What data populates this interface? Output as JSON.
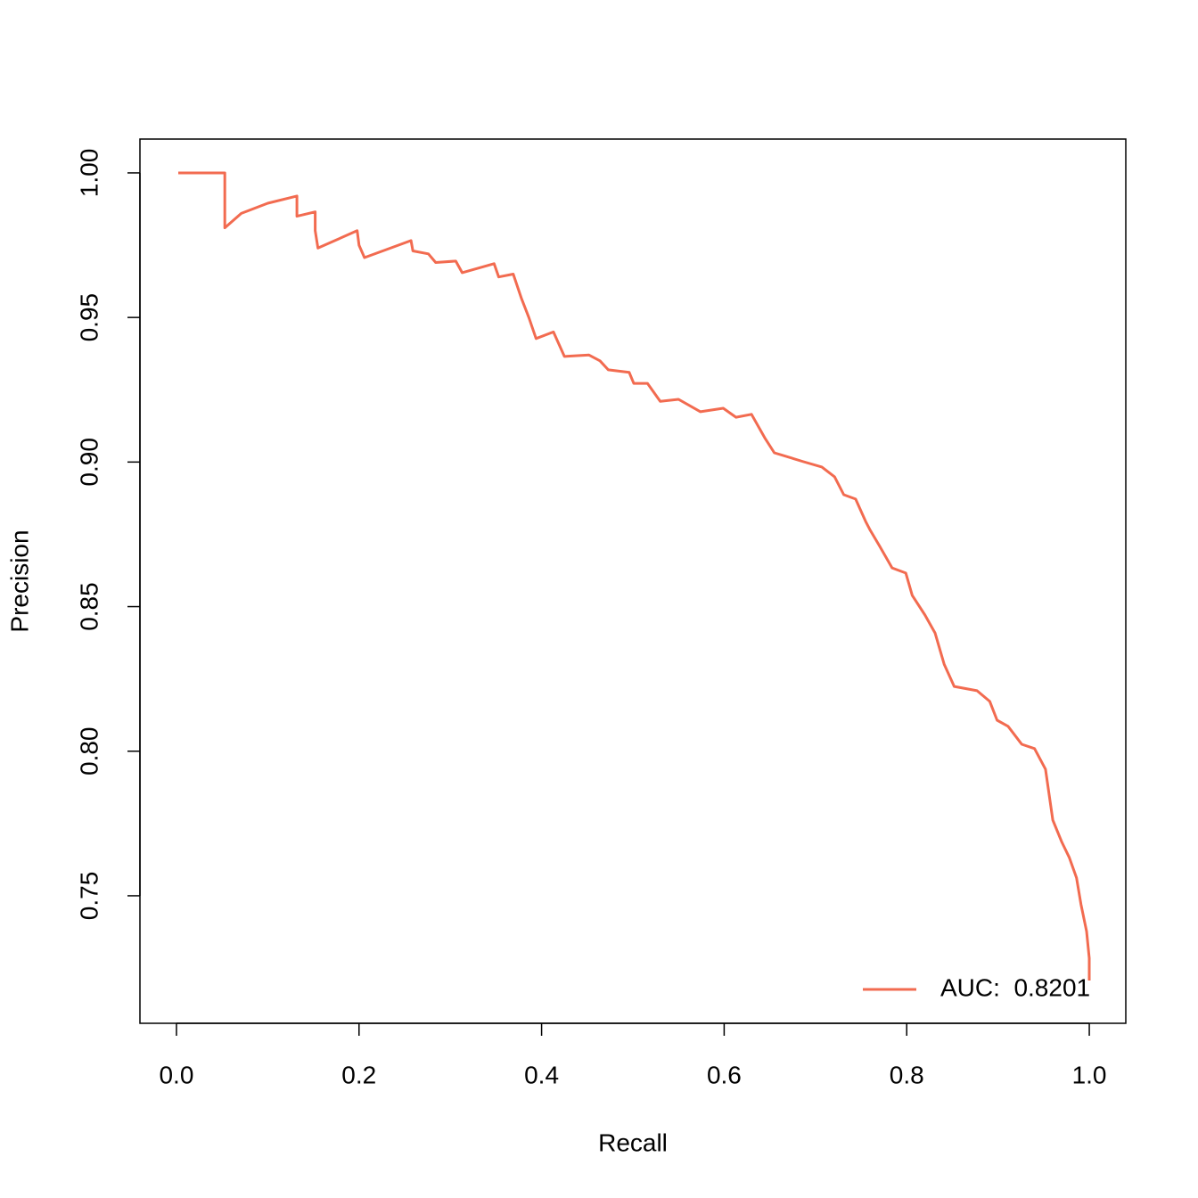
{
  "chart_data": {
    "type": "line",
    "xlabel": "Recall",
    "ylabel": "Precision",
    "xlim": [
      -0.04,
      1.04
    ],
    "ylim": [
      0.7059,
      1.0117
    ],
    "xticks": [
      {
        "value": 0,
        "label": "0.0"
      },
      0.2,
      0.4,
      0.6,
      0.8,
      {
        "value": 1,
        "label": "1.0"
      }
    ],
    "yticks": [
      {
        "value": 0.75,
        "label": "0.75"
      },
      {
        "value": 0.8,
        "label": "0.80"
      },
      {
        "value": 0.85,
        "label": "0.85"
      },
      {
        "value": 0.9,
        "label": "0.90"
      },
      {
        "value": 0.95,
        "label": "0.95"
      },
      {
        "value": 1,
        "label": "1.00"
      }
    ],
    "legend": "bottomright",
    "series": [
      {
        "name": "AUC:  0.8201",
        "color": "#f26b50",
        "x": [
          0.002,
          0.053,
          0.053,
          0.071,
          0.1,
          0.132,
          0.132,
          0.152,
          0.152,
          0.155,
          0.198,
          0.2,
          0.206,
          0.257,
          0.259,
          0.276,
          0.284,
          0.306,
          0.313,
          0.348,
          0.353,
          0.369,
          0.378,
          0.386,
          0.394,
          0.413,
          0.425,
          0.452,
          0.464,
          0.473,
          0.496,
          0.501,
          0.516,
          0.53,
          0.55,
          0.574,
          0.599,
          0.613,
          0.63,
          0.645,
          0.655,
          0.687,
          0.707,
          0.721,
          0.731,
          0.744,
          0.755,
          0.76,
          0.77,
          0.784,
          0.799,
          0.806,
          0.82,
          0.831,
          0.841,
          0.852,
          0.877,
          0.891,
          0.899,
          0.911,
          0.926,
          0.94,
          0.952,
          0.96,
          0.97,
          0.978,
          0.986,
          0.991,
          0.997,
          1.0,
          1.0
        ],
        "values": [
          1.0,
          1.0,
          0.981,
          0.986,
          0.9895,
          0.992,
          0.985,
          0.9865,
          0.98,
          0.974,
          0.98,
          0.975,
          0.9707,
          0.9766,
          0.973,
          0.972,
          0.969,
          0.9695,
          0.9655,
          0.9686,
          0.964,
          0.965,
          0.9565,
          0.95,
          0.9427,
          0.945,
          0.9365,
          0.937,
          0.935,
          0.9319,
          0.931,
          0.9272,
          0.9272,
          0.921,
          0.9217,
          0.9174,
          0.9186,
          0.9155,
          0.9165,
          0.9081,
          0.9032,
          0.9001,
          0.8983,
          0.8949,
          0.8887,
          0.8872,
          0.8795,
          0.8764,
          0.8711,
          0.8634,
          0.8616,
          0.8539,
          0.8471,
          0.8409,
          0.8301,
          0.8224,
          0.8209,
          0.8172,
          0.8107,
          0.8086,
          0.8024,
          0.8009,
          0.7938,
          0.7762,
          0.7685,
          0.7633,
          0.7562,
          0.7469,
          0.7377,
          0.7284,
          0.7207
        ]
      }
    ]
  }
}
